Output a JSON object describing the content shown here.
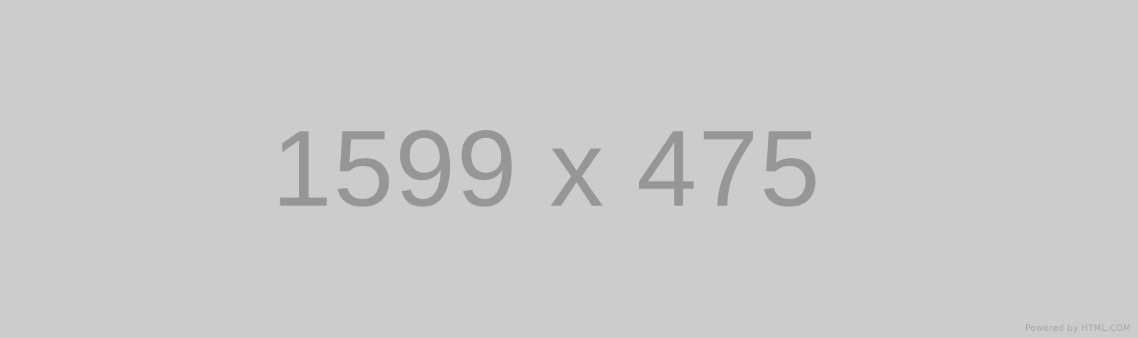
{
  "placeholder": {
    "dimensions_text": "1599 x 475",
    "credit_text": "Powered by HTML.COM",
    "background_color": "#cccccc",
    "text_color": "#969696",
    "credit_color": "#a6a6a6"
  }
}
